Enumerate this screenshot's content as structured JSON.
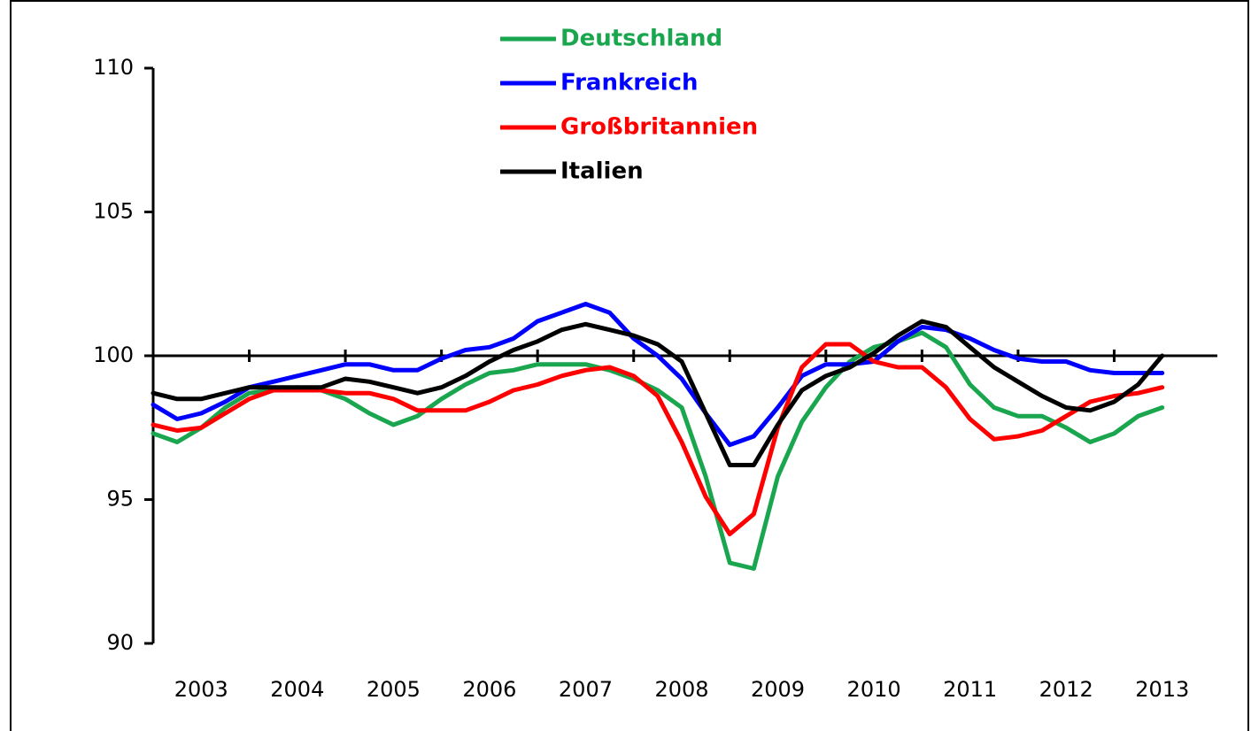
{
  "chart_data": {
    "type": "line",
    "x": [
      2003,
      2003.25,
      2003.5,
      2003.75,
      2004,
      2004.25,
      2004.5,
      2004.75,
      2005,
      2005.25,
      2005.5,
      2005.75,
      2006,
      2006.25,
      2006.5,
      2006.75,
      2007,
      2007.25,
      2007.5,
      2007.75,
      2008,
      2008.25,
      2008.5,
      2008.75,
      2009,
      2009.25,
      2009.5,
      2009.75,
      2010,
      2010.25,
      2010.5,
      2010.75,
      2011,
      2011.25,
      2011.5,
      2011.75,
      2012,
      2012.25,
      2012.5,
      2012.75,
      2013,
      2013.25,
      2013.5
    ],
    "series": [
      {
        "name": "Deutschland",
        "color": "#1aa64f",
        "values": [
          97.3,
          97.0,
          97.5,
          98.2,
          98.7,
          98.8,
          98.9,
          98.8,
          98.5,
          98.0,
          97.6,
          97.9,
          98.5,
          99.0,
          99.4,
          99.5,
          99.7,
          99.7,
          99.7,
          99.5,
          99.2,
          98.8,
          98.2,
          95.8,
          92.8,
          92.6,
          95.8,
          97.7,
          98.9,
          99.8,
          100.3,
          100.5,
          100.8,
          100.3,
          99.0,
          98.2,
          97.9,
          97.9,
          97.5,
          97.0,
          97.3,
          97.9,
          98.2
        ]
      },
      {
        "name": "Frankreich",
        "color": "#0000ff",
        "values": [
          98.3,
          97.8,
          98.0,
          98.4,
          98.9,
          99.1,
          99.3,
          99.5,
          99.7,
          99.7,
          99.5,
          99.5,
          99.9,
          100.2,
          100.3,
          100.6,
          101.2,
          101.5,
          101.8,
          101.5,
          100.6,
          100.0,
          99.2,
          98.0,
          96.9,
          97.2,
          98.2,
          99.3,
          99.7,
          99.7,
          99.8,
          100.5,
          101.0,
          100.9,
          100.6,
          100.2,
          99.9,
          99.8,
          99.8,
          99.5,
          99.4,
          99.4,
          99.4
        ]
      },
      {
        "name": "Großbritannien",
        "color": "#ff0000",
        "values": [
          97.6,
          97.4,
          97.5,
          98.0,
          98.5,
          98.8,
          98.8,
          98.8,
          98.7,
          98.7,
          98.5,
          98.1,
          98.1,
          98.1,
          98.4,
          98.8,
          99.0,
          99.3,
          99.5,
          99.6,
          99.3,
          98.6,
          97.0,
          95.1,
          93.8,
          94.5,
          97.5,
          99.6,
          100.4,
          100.4,
          99.8,
          99.6,
          99.6,
          98.9,
          97.8,
          97.1,
          97.2,
          97.4,
          97.9,
          98.4,
          98.6,
          98.7,
          98.9
        ]
      },
      {
        "name": "Italien",
        "color": "#000000",
        "values": [
          98.7,
          98.5,
          98.5,
          98.7,
          98.9,
          98.9,
          98.9,
          98.9,
          99.2,
          99.1,
          98.9,
          98.7,
          98.9,
          99.3,
          99.8,
          100.2,
          100.5,
          100.9,
          101.1,
          100.9,
          100.7,
          100.4,
          99.8,
          98.0,
          96.2,
          96.2,
          97.6,
          98.8,
          99.3,
          99.6,
          100.1,
          100.7,
          101.2,
          101.0,
          100.3,
          99.6,
          99.1,
          98.6,
          98.2,
          98.1,
          98.4,
          99.0,
          100.0
        ]
      }
    ],
    "xlim": [
      2003,
      2014
    ],
    "xticks": [
      2003,
      2004,
      2005,
      2006,
      2007,
      2008,
      2009,
      2010,
      2011,
      2012,
      2013
    ],
    "ylim": [
      90,
      110
    ],
    "yticks": [
      90,
      95,
      100,
      105,
      110
    ],
    "baseline": 100,
    "legend": "top"
  }
}
